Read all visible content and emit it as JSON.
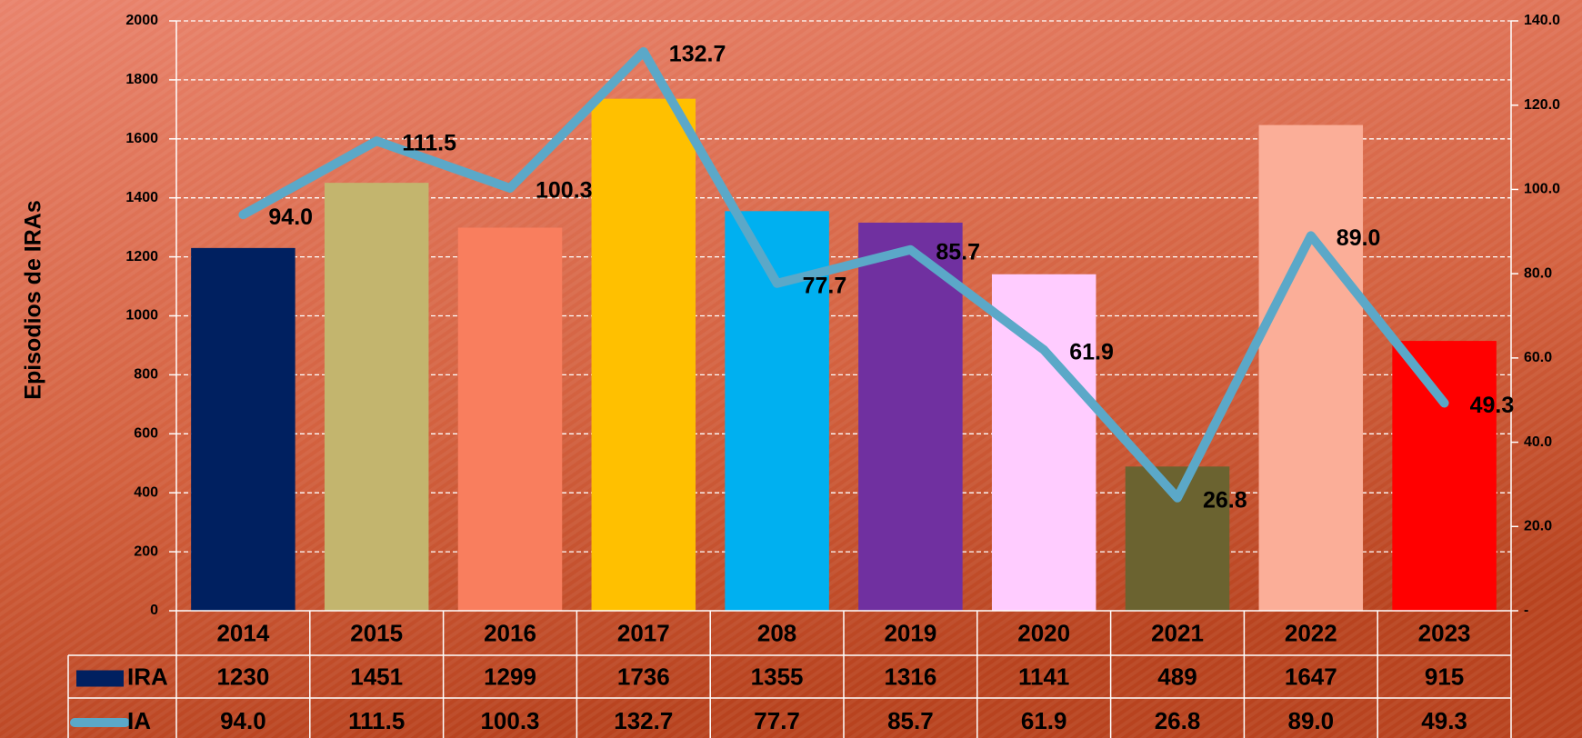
{
  "chart_data": {
    "type": "bar",
    "y_label": "Episodios de IRAs",
    "categories": [
      "2014",
      "2015",
      "2016",
      "2017",
      "208",
      "2019",
      "2020",
      "2021",
      "2022",
      "2023"
    ],
    "series": [
      {
        "name": "IRA",
        "color": "#002060",
        "colors": [
          "#002060",
          "#c3b56e",
          "#f97e5e",
          "#ffc000",
          "#00b0f0",
          "#7030a0",
          "#ffccff",
          "#6b6330",
          "#fbae98",
          "#ff0000"
        ],
        "values": [
          1230,
          1451,
          1299,
          1736,
          1355,
          1316,
          1141,
          489,
          1647,
          915
        ]
      },
      {
        "name": "IA",
        "type": "line",
        "axis": "y2",
        "color": "#5ba8c8",
        "values": [
          94.0,
          111.5,
          100.3,
          132.7,
          77.7,
          85.7,
          61.9,
          26.8,
          89.0,
          49.3
        ],
        "value_labels": [
          "94.0",
          "111.5",
          "100.3",
          "132.7",
          "77.7",
          "85.7",
          "61.9",
          "26.8",
          "89.0",
          "49.3"
        ]
      }
    ],
    "ylim": [
      0,
      2000
    ],
    "yticks": [
      0,
      200,
      400,
      600,
      800,
      1000,
      1200,
      1400,
      1600,
      1800,
      2000
    ],
    "y2lim": [
      0,
      140
    ],
    "y2ticks": [
      {
        "value": 0,
        "label": "-"
      },
      {
        "value": 20,
        "label": "20.0"
      },
      {
        "value": 40,
        "label": "40.0"
      },
      {
        "value": 60,
        "label": "60.0"
      },
      {
        "value": 80,
        "label": "80.0"
      },
      {
        "value": 100,
        "label": "100.0"
      },
      {
        "value": 120,
        "label": "120.0"
      },
      {
        "value": 140,
        "label": "140.0"
      }
    ],
    "grid": true
  }
}
